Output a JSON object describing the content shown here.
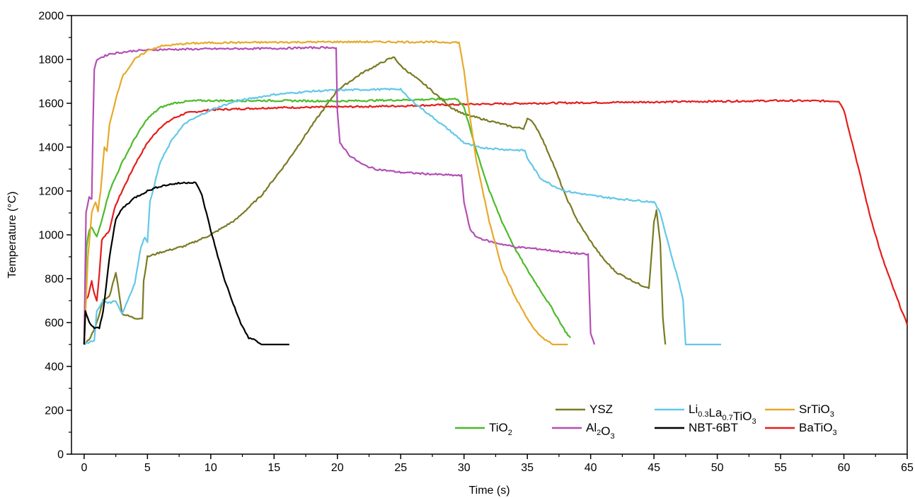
{
  "chart_data": {
    "type": "line",
    "xlabel": "Time (s)",
    "ylabel": "Temperature (°C)",
    "xlim": [
      -1,
      65
    ],
    "ylim": [
      0,
      2000
    ],
    "xticks": [
      0,
      5,
      10,
      15,
      20,
      25,
      30,
      35,
      40,
      45,
      50,
      55,
      60,
      65
    ],
    "yticks": [
      0,
      200,
      400,
      600,
      800,
      1000,
      1200,
      1400,
      1600,
      1800,
      2000
    ],
    "grid": false,
    "legend_position": "bottom-right",
    "series": [
      {
        "name": "TiO2",
        "label_main": "TiO",
        "label_sub": "2",
        "label_tail": "",
        "color": "#4cbb2a",
        "points": [
          [
            0,
            500
          ],
          [
            0.1,
            800
          ],
          [
            0.2,
            950
          ],
          [
            0.4,
            1020
          ],
          [
            0.6,
            1035
          ],
          [
            0.8,
            1010
          ],
          [
            1.0,
            990
          ],
          [
            1.3,
            1050
          ],
          [
            2,
            1200
          ],
          [
            3,
            1330
          ],
          [
            4,
            1440
          ],
          [
            5,
            1530
          ],
          [
            6,
            1580
          ],
          [
            7,
            1600
          ],
          [
            8,
            1608
          ],
          [
            9,
            1612
          ],
          [
            10,
            1612
          ],
          [
            15,
            1612
          ],
          [
            20,
            1610
          ],
          [
            25,
            1615
          ],
          [
            29.5,
            1620
          ],
          [
            30,
            1580
          ],
          [
            31,
            1380
          ],
          [
            32,
            1200
          ],
          [
            33,
            1060
          ],
          [
            34,
            940
          ],
          [
            35,
            840
          ],
          [
            36,
            750
          ],
          [
            37,
            660
          ],
          [
            37.5,
            610
          ],
          [
            38,
            560
          ],
          [
            38.4,
            530
          ]
        ]
      },
      {
        "name": "Al2O3",
        "label_main": "Al",
        "label_sub": "2",
        "label_tail": "O₃",
        "color": "#b34fb4",
        "points": [
          [
            0,
            500
          ],
          [
            0.15,
            1100
          ],
          [
            0.4,
            1175
          ],
          [
            0.6,
            1160
          ],
          [
            0.7,
            1500
          ],
          [
            0.8,
            1750
          ],
          [
            1,
            1800
          ],
          [
            2,
            1825
          ],
          [
            4,
            1840
          ],
          [
            6,
            1845
          ],
          [
            10,
            1848
          ],
          [
            15,
            1850
          ],
          [
            19.5,
            1855
          ],
          [
            19.9,
            1850
          ],
          [
            20,
            1560
          ],
          [
            20.2,
            1420
          ],
          [
            21,
            1360
          ],
          [
            22,
            1320
          ],
          [
            23,
            1300
          ],
          [
            25,
            1285
          ],
          [
            28,
            1275
          ],
          [
            29.8,
            1270
          ],
          [
            30,
            1150
          ],
          [
            30.5,
            1020
          ],
          [
            31,
            990
          ],
          [
            32,
            970
          ],
          [
            34,
            945
          ],
          [
            36,
            935
          ],
          [
            38,
            920
          ],
          [
            39.8,
            910
          ],
          [
            40,
            550
          ],
          [
            40.3,
            500
          ]
        ]
      },
      {
        "name": "YSZ",
        "label_main": "YSZ",
        "label_sub": "",
        "label_tail": "",
        "color": "#7a7a24",
        "points": [
          [
            0,
            500
          ],
          [
            0.5,
            530
          ],
          [
            1.0,
            600
          ],
          [
            1.5,
            700
          ],
          [
            2.0,
            720
          ],
          [
            2.5,
            830
          ],
          [
            2.8,
            720
          ],
          [
            3.0,
            640
          ],
          [
            4.0,
            620
          ],
          [
            4.6,
            620
          ],
          [
            4.7,
            790
          ],
          [
            5.0,
            900
          ],
          [
            6,
            920
          ],
          [
            8,
            950
          ],
          [
            10,
            1000
          ],
          [
            12,
            1070
          ],
          [
            14,
            1180
          ],
          [
            16,
            1330
          ],
          [
            18,
            1500
          ],
          [
            20,
            1660
          ],
          [
            22,
            1740
          ],
          [
            24,
            1800
          ],
          [
            24.5,
            1810
          ],
          [
            25,
            1770
          ],
          [
            27,
            1680
          ],
          [
            29,
            1580
          ],
          [
            30,
            1550
          ],
          [
            32,
            1520
          ],
          [
            34,
            1490
          ],
          [
            34.7,
            1485
          ],
          [
            35,
            1530
          ],
          [
            35.5,
            1510
          ],
          [
            36,
            1460
          ],
          [
            37,
            1330
          ],
          [
            38,
            1180
          ],
          [
            39,
            1060
          ],
          [
            40,
            970
          ],
          [
            41,
            890
          ],
          [
            42,
            830
          ],
          [
            43,
            800
          ],
          [
            44,
            770
          ],
          [
            44.6,
            760
          ],
          [
            44.8,
            900
          ],
          [
            45.0,
            1060
          ],
          [
            45.2,
            1110
          ],
          [
            45.5,
            960
          ],
          [
            45.7,
            620
          ],
          [
            45.9,
            500
          ]
        ]
      },
      {
        "name": "NBT-6BT",
        "label_main": "NBT-6BT",
        "label_sub": "",
        "label_tail": "",
        "color": "#000000",
        "points": [
          [
            0,
            500
          ],
          [
            0.1,
            650
          ],
          [
            0.4,
            600
          ],
          [
            0.8,
            575
          ],
          [
            1.2,
            575
          ],
          [
            1.5,
            650
          ],
          [
            2.0,
            900
          ],
          [
            2.5,
            1070
          ],
          [
            3,
            1120
          ],
          [
            4,
            1170
          ],
          [
            5,
            1200
          ],
          [
            6,
            1222
          ],
          [
            7,
            1232
          ],
          [
            8,
            1238
          ],
          [
            8.8,
            1240
          ],
          [
            9.3,
            1180
          ],
          [
            10,
            1020
          ],
          [
            11,
            810
          ],
          [
            12,
            650
          ],
          [
            12.5,
            580
          ],
          [
            13,
            530
          ],
          [
            13.5,
            520
          ],
          [
            14,
            500
          ],
          [
            16.2,
            500
          ]
        ]
      },
      {
        "name": "Li0.3La0.7TiO3",
        "label_main": "Li",
        "label_sub": "0.3",
        "label_main2": "La",
        "label_sub2": "0.7",
        "label_main3": "TiO",
        "label_sub3": "3",
        "color": "#62c8e8",
        "points": [
          [
            0,
            500
          ],
          [
            0.8,
            520
          ],
          [
            1.0,
            650
          ],
          [
            1.5,
            700
          ],
          [
            2,
            690
          ],
          [
            2.5,
            700
          ],
          [
            3,
            640
          ],
          [
            4,
            780
          ],
          [
            4.5,
            950
          ],
          [
            4.8,
            990
          ],
          [
            5,
            970
          ],
          [
            5.2,
            1150
          ],
          [
            6,
            1330
          ],
          [
            7,
            1440
          ],
          [
            8,
            1510
          ],
          [
            10,
            1570
          ],
          [
            12,
            1610
          ],
          [
            15,
            1640
          ],
          [
            18,
            1655
          ],
          [
            20,
            1660
          ],
          [
            25,
            1665
          ],
          [
            25.5,
            1630
          ],
          [
            27,
            1560
          ],
          [
            29,
            1470
          ],
          [
            30,
            1420
          ],
          [
            31,
            1400
          ],
          [
            33,
            1390
          ],
          [
            34.8,
            1385
          ],
          [
            35,
            1350
          ],
          [
            36,
            1260
          ],
          [
            37,
            1225
          ],
          [
            38,
            1200
          ],
          [
            40,
            1180
          ],
          [
            42,
            1165
          ],
          [
            44,
            1155
          ],
          [
            45,
            1150
          ],
          [
            45.5,
            1100
          ],
          [
            46,
            990
          ],
          [
            46.5,
            880
          ],
          [
            47,
            780
          ],
          [
            47.3,
            700
          ],
          [
            47.5,
            500
          ],
          [
            50.3,
            500
          ]
        ]
      },
      {
        "name": "SrTiO3",
        "label_main": "SrTiO",
        "label_sub": "3",
        "label_tail": "",
        "color": "#e6a92a",
        "points": [
          [
            0,
            500
          ],
          [
            0.3,
            900
          ],
          [
            0.6,
            1100
          ],
          [
            0.9,
            1150
          ],
          [
            1.1,
            1110
          ],
          [
            1.3,
            1200
          ],
          [
            1.6,
            1400
          ],
          [
            1.8,
            1380
          ],
          [
            2,
            1500
          ],
          [
            2.5,
            1620
          ],
          [
            3,
            1720
          ],
          [
            4,
            1800
          ],
          [
            5,
            1840
          ],
          [
            6,
            1860
          ],
          [
            8,
            1872
          ],
          [
            10,
            1876
          ],
          [
            15,
            1878
          ],
          [
            20,
            1880
          ],
          [
            25,
            1880
          ],
          [
            29.6,
            1878
          ],
          [
            30,
            1750
          ],
          [
            30.5,
            1520
          ],
          [
            31,
            1330
          ],
          [
            32,
            1060
          ],
          [
            33,
            850
          ],
          [
            34,
            720
          ],
          [
            35,
            620
          ],
          [
            35.5,
            570
          ],
          [
            36,
            540
          ],
          [
            36.5,
            520
          ],
          [
            37,
            500
          ],
          [
            38.2,
            500
          ]
        ]
      },
      {
        "name": "BaTiO3",
        "label_main": "BaTiO",
        "label_sub": "3",
        "label_tail": "",
        "color": "#e51d1d",
        "points": [
          [
            0,
            500
          ],
          [
            0.1,
            700
          ],
          [
            0.3,
            720
          ],
          [
            0.6,
            790
          ],
          [
            0.8,
            730
          ],
          [
            1.0,
            700
          ],
          [
            1.2,
            820
          ],
          [
            1.4,
            980
          ],
          [
            2,
            1020
          ],
          [
            2.3,
            1100
          ],
          [
            2.6,
            1150
          ],
          [
            3,
            1200
          ],
          [
            4,
            1320
          ],
          [
            5,
            1420
          ],
          [
            6,
            1490
          ],
          [
            7,
            1530
          ],
          [
            8,
            1555
          ],
          [
            10,
            1570
          ],
          [
            15,
            1580
          ],
          [
            20,
            1583
          ],
          [
            25,
            1588
          ],
          [
            30,
            1595
          ],
          [
            35,
            1600
          ],
          [
            40,
            1603
          ],
          [
            45,
            1606
          ],
          [
            50,
            1609
          ],
          [
            55,
            1612
          ],
          [
            59.6,
            1610
          ],
          [
            60,
            1570
          ],
          [
            61,
            1340
          ],
          [
            62,
            1100
          ],
          [
            63,
            900
          ],
          [
            64,
            740
          ],
          [
            65,
            590
          ]
        ]
      }
    ],
    "legend_rows": [
      [
        "YSZ",
        "Li0.3La0.7TiO3",
        "SrTiO3"
      ],
      [
        "TiO2",
        "Al2O3",
        "NBT-6BT",
        "BaTiO3"
      ]
    ]
  }
}
